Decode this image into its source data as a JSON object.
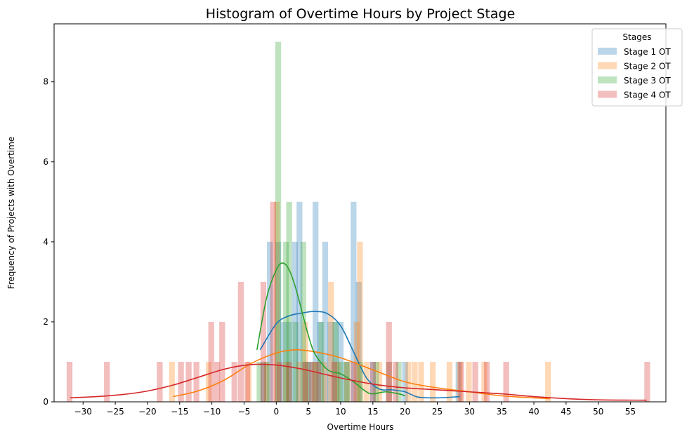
{
  "chart_data": {
    "type": "bar",
    "title": "Histogram of Overtime Hours by Project Stage",
    "xlabel": "Overtime Hours",
    "ylabel": "Frequency of Projects with Overtime",
    "xlim": [
      -34.5,
      60.5
    ],
    "ylim": [
      0,
      9.45
    ],
    "xticks": [
      -30,
      -25,
      -20,
      -15,
      -10,
      -5,
      0,
      5,
      10,
      15,
      20,
      25,
      30,
      35,
      40,
      45,
      50,
      55
    ],
    "yticks": [
      0,
      2,
      4,
      6,
      8
    ],
    "grid": false,
    "legend": {
      "title": "Stages",
      "placement": "top-right"
    },
    "bar_width": 0.9,
    "series": [
      {
        "name": "Stage 1 OT",
        "color": "#1f77b4",
        "bar_opacity": 0.3,
        "bins": [
          {
            "x": -2.0,
            "y": 1
          },
          {
            "x": -1.0,
            "y": 4
          },
          {
            "x": 0.3,
            "y": 4
          },
          {
            "x": 1.1,
            "y": 2
          },
          {
            "x": 2.0,
            "y": 2
          },
          {
            "x": 2.9,
            "y": 4
          },
          {
            "x": 3.6,
            "y": 5
          },
          {
            "x": 4.5,
            "y": 1
          },
          {
            "x": 5.3,
            "y": 1
          },
          {
            "x": 6.1,
            "y": 5
          },
          {
            "x": 6.8,
            "y": 2
          },
          {
            "x": 7.6,
            "y": 4
          },
          {
            "x": 8.4,
            "y": 2
          },
          {
            "x": 9.2,
            "y": 2
          },
          {
            "x": 10.0,
            "y": 2
          },
          {
            "x": 10.9,
            "y": 1
          },
          {
            "x": 12.0,
            "y": 5
          },
          {
            "x": 12.8,
            "y": 3
          },
          {
            "x": 15.0,
            "y": 1
          },
          {
            "x": 17.5,
            "y": 1
          },
          {
            "x": 20.0,
            "y": 1
          },
          {
            "x": 28.3,
            "y": 1
          }
        ],
        "kde": {
          "x": [
            -2.5,
            0,
            2,
            4,
            6,
            8,
            10,
            12,
            14,
            16,
            18,
            20,
            22,
            25,
            28.5
          ],
          "y": [
            1.3,
            1.95,
            2.15,
            2.22,
            2.26,
            2.2,
            1.9,
            1.25,
            0.6,
            0.32,
            0.3,
            0.25,
            0.12,
            0.1,
            0.13
          ]
        }
      },
      {
        "name": "Stage 2 OT",
        "color": "#ff7f0e",
        "bar_opacity": 0.3,
        "bins": [
          {
            "x": -16.2,
            "y": 1
          },
          {
            "x": -10.5,
            "y": 1
          },
          {
            "x": -4.3,
            "y": 1
          },
          {
            "x": -1.5,
            "y": 1
          },
          {
            "x": 0.1,
            "y": 5
          },
          {
            "x": 1.5,
            "y": 1
          },
          {
            "x": 3.5,
            "y": 1
          },
          {
            "x": 4.5,
            "y": 2
          },
          {
            "x": 6.0,
            "y": 1
          },
          {
            "x": 7.5,
            "y": 1
          },
          {
            "x": 8.5,
            "y": 3
          },
          {
            "x": 9.5,
            "y": 1
          },
          {
            "x": 11.0,
            "y": 1
          },
          {
            "x": 12.5,
            "y": 2
          },
          {
            "x": 13.0,
            "y": 4
          },
          {
            "x": 14.0,
            "y": 1
          },
          {
            "x": 16.0,
            "y": 1
          },
          {
            "x": 17.5,
            "y": 1
          },
          {
            "x": 20.5,
            "y": 1
          },
          {
            "x": 21.5,
            "y": 1
          },
          {
            "x": 22.5,
            "y": 1
          },
          {
            "x": 24.3,
            "y": 1
          },
          {
            "x": 26.9,
            "y": 1
          },
          {
            "x": 28.5,
            "y": 1
          },
          {
            "x": 29.9,
            "y": 1
          },
          {
            "x": 32.3,
            "y": 1
          },
          {
            "x": 42.2,
            "y": 1
          }
        ],
        "kde": {
          "x": [
            -16,
            -12,
            -8,
            -4,
            0,
            3,
            6,
            10,
            15,
            20,
            25,
            30,
            35,
            40,
            42.5
          ],
          "y": [
            0.13,
            0.28,
            0.55,
            0.95,
            1.22,
            1.3,
            1.25,
            1.1,
            0.8,
            0.5,
            0.35,
            0.25,
            0.15,
            0.1,
            0.08
          ]
        }
      },
      {
        "name": "Stage 3 OT",
        "color": "#2ca02c",
        "bar_opacity": 0.3,
        "bins": [
          {
            "x": -2.6,
            "y": 1
          },
          {
            "x": -1.5,
            "y": 1
          },
          {
            "x": 0.3,
            "y": 9
          },
          {
            "x": 1.5,
            "y": 4
          },
          {
            "x": 2.0,
            "y": 5
          },
          {
            "x": 3.0,
            "y": 2
          },
          {
            "x": 4.2,
            "y": 4
          },
          {
            "x": 5.0,
            "y": 1
          },
          {
            "x": 6.1,
            "y": 1
          },
          {
            "x": 7.0,
            "y": 2
          },
          {
            "x": 9.2,
            "y": 2
          },
          {
            "x": 10.0,
            "y": 1
          },
          {
            "x": 11.0,
            "y": 1
          },
          {
            "x": 13.0,
            "y": 1
          },
          {
            "x": 15.5,
            "y": 1
          },
          {
            "x": 19.0,
            "y": 1
          }
        ],
        "kde": {
          "x": [
            -3,
            -1.5,
            0,
            1,
            2,
            3,
            4,
            5,
            6,
            8,
            10,
            12,
            14,
            15,
            17,
            19,
            20
          ],
          "y": [
            1.3,
            2.6,
            3.3,
            3.47,
            3.3,
            2.85,
            2.25,
            1.65,
            1.2,
            0.8,
            0.7,
            0.5,
            0.25,
            0.2,
            0.25,
            0.2,
            0.15
          ]
        }
      },
      {
        "name": "Stage 4 OT",
        "color": "#d62728",
        "bar_opacity": 0.3,
        "bins": [
          {
            "x": -32.1,
            "y": 1
          },
          {
            "x": -26.3,
            "y": 1
          },
          {
            "x": -18.1,
            "y": 1
          },
          {
            "x": -14.8,
            "y": 1
          },
          {
            "x": -13.6,
            "y": 1
          },
          {
            "x": -12.4,
            "y": 1
          },
          {
            "x": -10.1,
            "y": 2
          },
          {
            "x": -9.2,
            "y": 1
          },
          {
            "x": -8.4,
            "y": 2
          },
          {
            "x": -6.5,
            "y": 1
          },
          {
            "x": -5.5,
            "y": 3
          },
          {
            "x": -4.5,
            "y": 1
          },
          {
            "x": -2.0,
            "y": 3
          },
          {
            "x": -0.5,
            "y": 5
          },
          {
            "x": 0.5,
            "y": 1
          },
          {
            "x": 2.0,
            "y": 1
          },
          {
            "x": 4.5,
            "y": 1
          },
          {
            "x": 5.5,
            "y": 1
          },
          {
            "x": 6.5,
            "y": 1
          },
          {
            "x": 9.0,
            "y": 1
          },
          {
            "x": 12.0,
            "y": 1
          },
          {
            "x": 15.0,
            "y": 1
          },
          {
            "x": 17.5,
            "y": 2
          },
          {
            "x": 18.5,
            "y": 1
          },
          {
            "x": 28.7,
            "y": 1
          },
          {
            "x": 30.9,
            "y": 1
          },
          {
            "x": 32.7,
            "y": 1
          },
          {
            "x": 35.7,
            "y": 1
          },
          {
            "x": 57.6,
            "y": 1
          }
        ],
        "kde": {
          "x": [
            -32,
            -28,
            -24,
            -20,
            -16,
            -12,
            -8,
            -4,
            0,
            4,
            8,
            12,
            16,
            20,
            25,
            30,
            35,
            40,
            45,
            50,
            57.5
          ],
          "y": [
            0.1,
            0.13,
            0.18,
            0.27,
            0.42,
            0.62,
            0.82,
            0.93,
            0.92,
            0.82,
            0.67,
            0.53,
            0.42,
            0.35,
            0.3,
            0.25,
            0.2,
            0.13,
            0.08,
            0.05,
            0.04
          ]
        }
      }
    ]
  }
}
